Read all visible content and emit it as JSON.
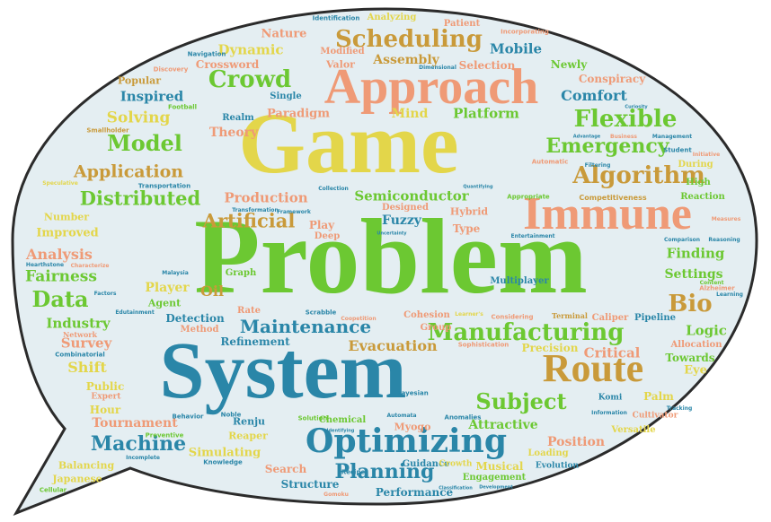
{
  "cloud": {
    "bubble_fill": "#e4eef2",
    "bubble_stroke": "#2b2b2b",
    "palette": {
      "green": "#6cc832",
      "yellow": "#e3d64a",
      "salmon": "#ef9a76",
      "teal": "#2a86a8",
      "gold": "#c99a3a"
    },
    "words": {
      "problem": "Problem",
      "game": "Game",
      "system": "System",
      "approach": "Approach",
      "immune": "Immune",
      "optimizing": "Optimizing",
      "route": "Route",
      "scheduling": "Scheduling",
      "algorithm": "Algorithm",
      "flexible": "Flexible",
      "crowd": "Crowd",
      "manufacturing": "Manufacturing",
      "maintenance": "Maintenance",
      "emergency": "Emergency",
      "artificial": "Artificial",
      "distributed": "Distributed",
      "model": "Model",
      "application": "Application",
      "machine": "Machine",
      "planning": "Planning",
      "subject": "Subject",
      "bio": "Bio",
      "data": "Data",
      "fairness": "Fairness",
      "analysis": "Analysis",
      "industry": "Industry",
      "survey": "Survey",
      "shift": "Shift",
      "evacuation": "Evacuation",
      "semiconductor": "Semiconductor",
      "production": "Production",
      "platform": "Platform",
      "mind": "Mind",
      "paradigm": "Paradigm",
      "theory": "Theory",
      "inspired": "Inspired",
      "solving": "Solving",
      "dynamic": "Dynamic",
      "nature": "Nature",
      "crossword": "Crossword",
      "popular": "Popular",
      "mobile": "Mobile",
      "newly": "Newly",
      "selection": "Selection",
      "assembly": "Assembly",
      "comfort": "Comfort",
      "conspiracy": "Conspiracy",
      "finding": "Finding",
      "settings": "Settings",
      "logic": "Logic",
      "towards": "Towards",
      "critical": "Critical",
      "precision": "Precision",
      "position": "Position",
      "attractive": "Attractive",
      "tournament": "Tournament",
      "simulating": "Simulating",
      "search": "Search",
      "structure": "Structure",
      "performance": "Performance",
      "musical": "Musical",
      "refinement": "Refinement",
      "detection": "Detection",
      "player": "Player",
      "oil": "Oil",
      "fuzzy": "Fuzzy",
      "improved": "Improved",
      "number": "Number",
      "public": "Public",
      "hour": "Hour",
      "balancing": "Balancing",
      "japanese": "Japanese",
      "reaper": "Reaper",
      "renju": "Renju",
      "myogo": "Myogo",
      "chemical": "Chemical",
      "guidance": "Guidance",
      "growth": "Growth",
      "engagement": "Engagement",
      "loading": "Loading",
      "evolution": "Evolution",
      "versatile": "Versatile",
      "cultivator": "Cultivator",
      "palm": "Palm",
      "komi": "Komi",
      "eye": "Eye",
      "allocation": "Allocation",
      "pipeline": "Pipeline",
      "caliper": "Caliper",
      "terminal": "Terminal",
      "multiplayer": "Multiplayer",
      "cohesion": "Cohesion",
      "group": "Group",
      "hybrid": "Hybrid",
      "type": "Type",
      "designed": "Designed",
      "play": "Play",
      "deep": "Deep",
      "agent": "Agent",
      "graph": "Graph",
      "rate": "Rate",
      "method": "Method",
      "realm": "Realm",
      "single": "Single",
      "valor": "Valor",
      "modified": "Modified",
      "patient": "Patient",
      "analyzing": "Analyzing",
      "identification": "Identification",
      "incorporating": "Incorporating",
      "navigation": "Navigation",
      "discovery": "Discovery",
      "football": "Football",
      "smallholder": "Smallholder",
      "transportation": "Transportation",
      "speculative": "Speculative",
      "hearthstone": "Hearthstone",
      "network": "Network",
      "combinatorial": "Combinatorial",
      "expert": "Expert",
      "cellular": "Cellular",
      "knowledge": "Knowledge",
      "recipe": "Recipe",
      "gomoku": "Gomoku",
      "incomplete": "Incomplete",
      "preventive": "Preventive",
      "behavior": "Behavior",
      "noble": "Noble",
      "solution": "Solution",
      "identifying": "Identifying",
      "automata": "Automata",
      "anomalies": "Anomalies",
      "bayesian": "Bayesian",
      "sophistication": "Sophistication",
      "coopetition": "Coopetition",
      "scrabble": "Scrabble",
      "edutainment": "Edutainment",
      "factors": "Factors",
      "characterize": "Characterize",
      "malaysia": "Malaysia",
      "uncertainty": "Uncertainty",
      "reaction": "Reaction",
      "high": "High",
      "competitiveness": "Competitiveness",
      "during": "During",
      "initiative": "Initiative",
      "student": "Student",
      "filtering": "Filtering",
      "automatic": "Automatic",
      "appropriate": "Appropriate",
      "dimensional": "Dimensional",
      "curiosity": "Curiosity",
      "advantage": "Advantage",
      "business": "Business",
      "management": "Management",
      "alzheimer": "Alzheimer",
      "learning": "Learning",
      "comparison": "Comparison",
      "reasoning": "Reasoning",
      "considering": "Considering",
      "tracking": "Tracking",
      "information": "Information",
      "content": "Content",
      "framework": "Framework",
      "transformation": "Transformation",
      "collection": "Collection",
      "entertainment": "Entertainment",
      "quantifying": "Quantifying",
      "measures": "Measures",
      "classification": "Classification",
      "development": "Development",
      "learners": "Learner's"
    }
  }
}
